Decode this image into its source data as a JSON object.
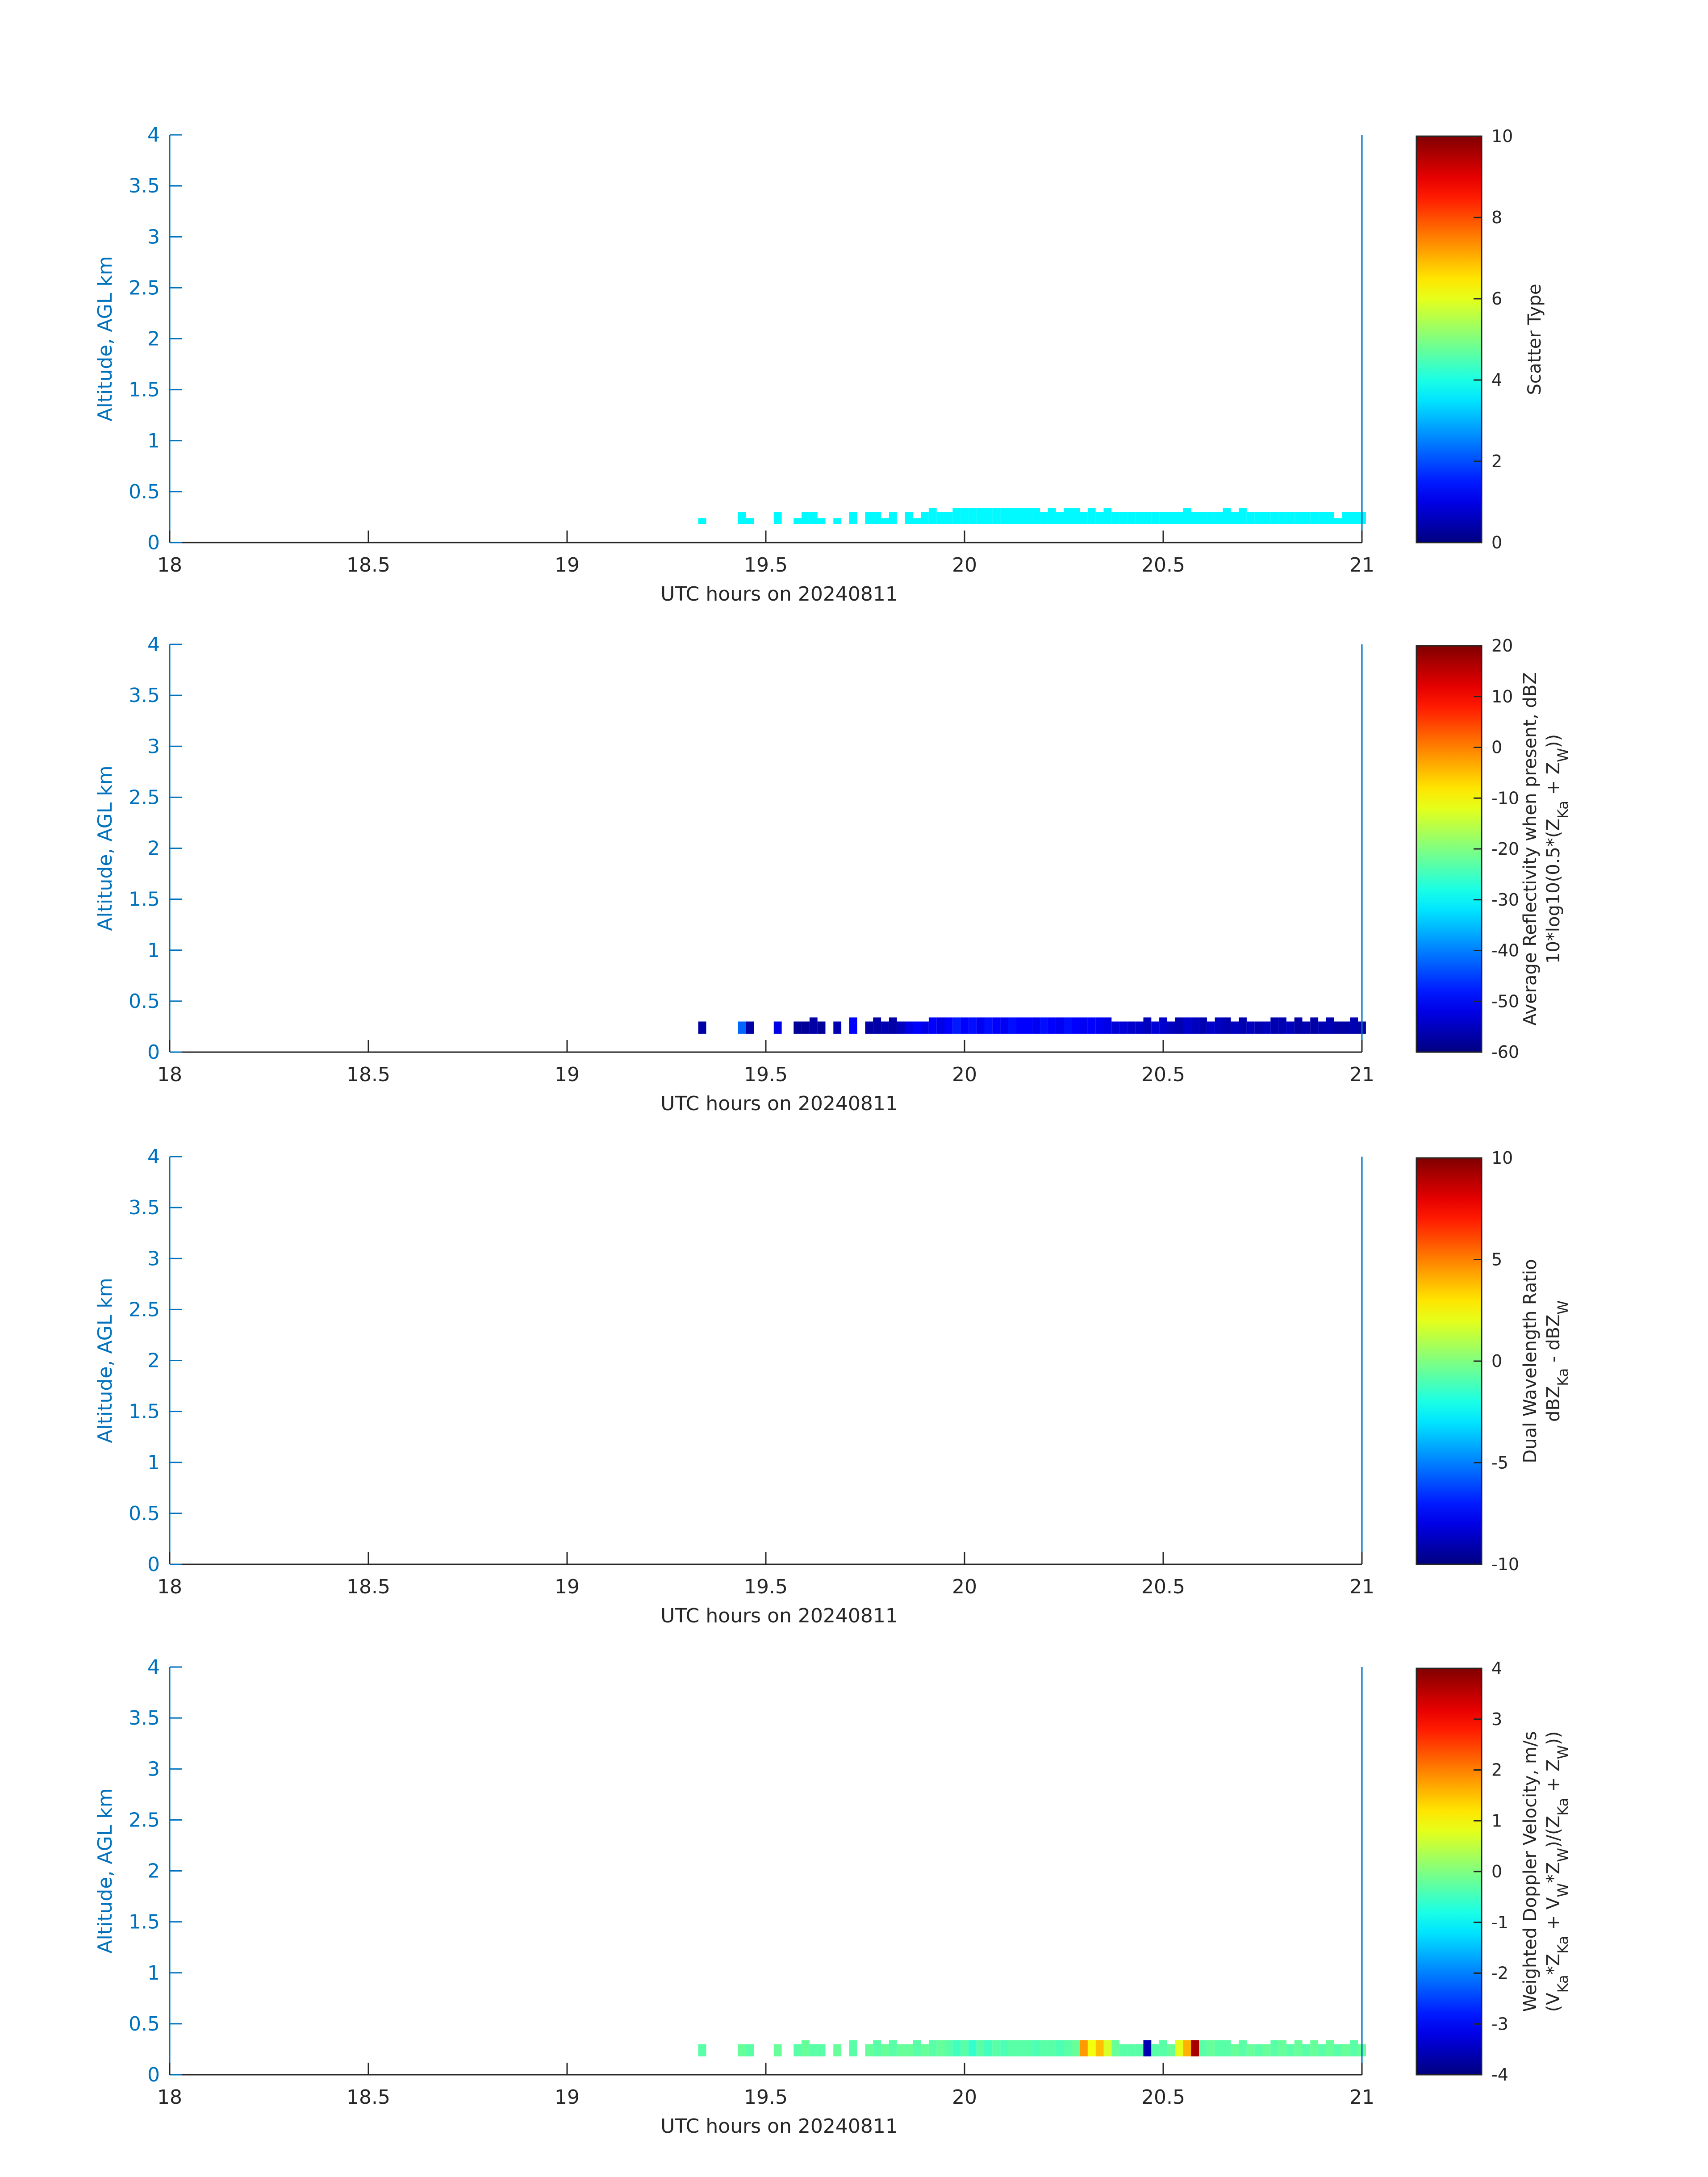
{
  "chart_data": [
    {
      "type": "heatmap",
      "xlabel": "UTC hours on 20240811",
      "ylabel": "Altitude, AGL km",
      "xlim": [
        18,
        21
      ],
      "ylim": [
        0,
        4
      ],
      "xticks": [
        "18",
        "18.5",
        "19",
        "19.5",
        "20",
        "20.5",
        "21"
      ],
      "yticks": [
        "0",
        "0.5",
        "1",
        "1.5",
        "2",
        "2.5",
        "3",
        "3.5",
        "4"
      ],
      "colorbar": {
        "label_lines": [
          "Scatter Type"
        ],
        "clim": [
          0,
          10
        ],
        "ticks": [
          "0",
          "2",
          "4",
          "6",
          "8",
          "10"
        ],
        "colormap": "jet"
      },
      "cells": {
        "x": [
          19.34,
          19.44,
          19.46,
          19.53,
          19.58,
          19.6,
          19.62,
          19.64,
          19.68,
          19.72,
          19.76,
          19.78,
          19.8,
          19.82,
          19.86,
          19.88,
          19.9,
          19.92,
          19.94,
          19.96,
          19.98,
          20.0,
          20.02,
          20.04,
          20.06,
          20.08,
          20.1,
          20.12,
          20.14,
          20.16,
          20.18,
          20.2,
          20.22,
          20.24,
          20.26,
          20.28,
          20.3,
          20.32,
          20.34,
          20.36,
          20.38,
          20.4,
          20.42,
          20.44,
          20.46,
          20.48,
          20.5,
          20.52,
          20.54,
          20.56,
          20.58,
          20.6,
          20.62,
          20.64,
          20.66,
          20.68,
          20.7,
          20.72,
          20.74,
          20.76,
          20.78,
          20.8,
          20.82,
          20.84,
          20.86,
          20.88,
          20.9,
          20.92,
          20.94,
          20.96,
          20.98,
          21.0
        ],
        "bottom": [
          0.18,
          0.18,
          0.18,
          0.18,
          0.18,
          0.18,
          0.18,
          0.18,
          0.18,
          0.18,
          0.18,
          0.18,
          0.18,
          0.18,
          0.18,
          0.18,
          0.18,
          0.18,
          0.18,
          0.18,
          0.18,
          0.18,
          0.18,
          0.18,
          0.18,
          0.18,
          0.18,
          0.18,
          0.18,
          0.18,
          0.18,
          0.18,
          0.18,
          0.18,
          0.18,
          0.18,
          0.18,
          0.18,
          0.18,
          0.18,
          0.18,
          0.18,
          0.18,
          0.18,
          0.18,
          0.18,
          0.18,
          0.18,
          0.18,
          0.18,
          0.18,
          0.18,
          0.18,
          0.18,
          0.18,
          0.18,
          0.18,
          0.18,
          0.18,
          0.18,
          0.18,
          0.18,
          0.18,
          0.18,
          0.18,
          0.18,
          0.18,
          0.18,
          0.18,
          0.18,
          0.18,
          0.18
        ],
        "top": [
          0.24,
          0.3,
          0.24,
          0.3,
          0.24,
          0.3,
          0.3,
          0.24,
          0.24,
          0.3,
          0.3,
          0.3,
          0.24,
          0.3,
          0.3,
          0.24,
          0.3,
          0.34,
          0.3,
          0.3,
          0.34,
          0.34,
          0.34,
          0.34,
          0.34,
          0.34,
          0.34,
          0.34,
          0.34,
          0.34,
          0.34,
          0.3,
          0.34,
          0.3,
          0.34,
          0.34,
          0.3,
          0.34,
          0.3,
          0.34,
          0.3,
          0.3,
          0.3,
          0.3,
          0.3,
          0.3,
          0.3,
          0.3,
          0.3,
          0.34,
          0.3,
          0.3,
          0.3,
          0.3,
          0.34,
          0.3,
          0.34,
          0.3,
          0.3,
          0.3,
          0.3,
          0.3,
          0.3,
          0.3,
          0.3,
          0.3,
          0.3,
          0.3,
          0.24,
          0.3,
          0.3,
          0.3
        ],
        "values": [
          3.7,
          3.7,
          3.7,
          3.7,
          3.7,
          3.7,
          3.7,
          3.7,
          3.7,
          3.7,
          3.7,
          3.7,
          3.7,
          3.7,
          3.7,
          3.7,
          3.7,
          3.7,
          3.7,
          3.7,
          3.7,
          3.7,
          3.7,
          3.7,
          3.7,
          3.7,
          3.7,
          3.7,
          3.7,
          3.7,
          3.7,
          3.7,
          3.7,
          3.7,
          3.7,
          3.7,
          3.7,
          3.7,
          3.7,
          3.7,
          3.7,
          3.7,
          3.7,
          3.7,
          3.7,
          3.7,
          3.7,
          3.7,
          3.7,
          3.7,
          3.7,
          3.7,
          3.7,
          3.7,
          3.7,
          3.7,
          3.7,
          3.7,
          3.7,
          3.7,
          3.7,
          3.7,
          3.7,
          3.7,
          3.7,
          3.7,
          3.7,
          3.7,
          3.7,
          3.7,
          3.7,
          3.7
        ]
      }
    },
    {
      "type": "heatmap",
      "xlabel": "UTC hours on 20240811",
      "ylabel": "Altitude, AGL km",
      "xlim": [
        18,
        21
      ],
      "ylim": [
        0,
        4
      ],
      "xticks": [
        "18",
        "18.5",
        "19",
        "19.5",
        "20",
        "20.5",
        "21"
      ],
      "yticks": [
        "0",
        "0.5",
        "1",
        "1.5",
        "2",
        "2.5",
        "3",
        "3.5",
        "4"
      ],
      "colorbar": {
        "label_lines": [
          "Average Reflectivity when present, dBZ",
          "10*log10(0.5*(Z",
          "Ka",
          " + Z",
          "W",
          "))"
        ],
        "clim": [
          -60,
          20
        ],
        "ticks": [
          "-60",
          "-50",
          "-40",
          "-30",
          "-20",
          "-10",
          "0",
          "10",
          "20"
        ],
        "colormap": "jet"
      },
      "cells": {
        "x": [
          19.34,
          19.44,
          19.46,
          19.53,
          19.58,
          19.6,
          19.62,
          19.64,
          19.68,
          19.72,
          19.76,
          19.78,
          19.8,
          19.82,
          19.84,
          19.86,
          19.88,
          19.9,
          19.92,
          19.94,
          19.96,
          19.98,
          20.0,
          20.02,
          20.04,
          20.06,
          20.08,
          20.1,
          20.12,
          20.14,
          20.16,
          20.18,
          20.2,
          20.22,
          20.24,
          20.26,
          20.28,
          20.3,
          20.32,
          20.34,
          20.36,
          20.38,
          20.4,
          20.42,
          20.44,
          20.46,
          20.48,
          20.5,
          20.52,
          20.54,
          20.56,
          20.58,
          20.6,
          20.62,
          20.64,
          20.66,
          20.68,
          20.7,
          20.72,
          20.74,
          20.76,
          20.78,
          20.8,
          20.82,
          20.84,
          20.86,
          20.88,
          20.9,
          20.92,
          20.94,
          20.96,
          20.98,
          21.0
        ],
        "bottom": [
          0.18,
          0.18,
          0.18,
          0.18,
          0.18,
          0.18,
          0.18,
          0.18,
          0.18,
          0.18,
          0.18,
          0.18,
          0.18,
          0.18,
          0.18,
          0.18,
          0.18,
          0.18,
          0.18,
          0.18,
          0.18,
          0.18,
          0.18,
          0.18,
          0.18,
          0.18,
          0.18,
          0.18,
          0.18,
          0.18,
          0.18,
          0.18,
          0.18,
          0.18,
          0.18,
          0.18,
          0.18,
          0.18,
          0.18,
          0.18,
          0.18,
          0.18,
          0.18,
          0.18,
          0.18,
          0.18,
          0.18,
          0.18,
          0.18,
          0.18,
          0.18,
          0.18,
          0.18,
          0.18,
          0.18,
          0.18,
          0.18,
          0.18,
          0.18,
          0.18,
          0.18,
          0.18,
          0.18,
          0.18,
          0.18,
          0.18,
          0.18,
          0.18,
          0.18,
          0.18,
          0.18,
          0.18,
          0.18
        ],
        "top": [
          0.3,
          0.3,
          0.3,
          0.3,
          0.3,
          0.3,
          0.34,
          0.3,
          0.3,
          0.34,
          0.3,
          0.34,
          0.3,
          0.34,
          0.3,
          0.3,
          0.3,
          0.3,
          0.34,
          0.34,
          0.34,
          0.34,
          0.34,
          0.34,
          0.34,
          0.34,
          0.34,
          0.34,
          0.34,
          0.34,
          0.34,
          0.34,
          0.34,
          0.34,
          0.34,
          0.34,
          0.34,
          0.34,
          0.34,
          0.34,
          0.34,
          0.3,
          0.3,
          0.3,
          0.3,
          0.34,
          0.3,
          0.34,
          0.3,
          0.34,
          0.34,
          0.34,
          0.34,
          0.3,
          0.34,
          0.34,
          0.3,
          0.34,
          0.3,
          0.3,
          0.3,
          0.34,
          0.34,
          0.3,
          0.34,
          0.3,
          0.34,
          0.3,
          0.34,
          0.3,
          0.3,
          0.34,
          0.3
        ],
        "values": [
          -57,
          -42,
          -57,
          -52,
          -58,
          -58,
          -57,
          -58,
          -56,
          -50,
          -57,
          -57,
          -56,
          -57,
          -55,
          -52,
          -50,
          -52,
          -50,
          -52,
          -50,
          -48,
          -50,
          -49,
          -51,
          -49,
          -50,
          -51,
          -49,
          -50,
          -50,
          -51,
          -49,
          -50,
          -51,
          -49,
          -50,
          -51,
          -50,
          -51,
          -52,
          -53,
          -53,
          -54,
          -54,
          -55,
          -53,
          -54,
          -55,
          -56,
          -54,
          -55,
          -56,
          -54,
          -55,
          -56,
          -55,
          -56,
          -55,
          -56,
          -55,
          -56,
          -56,
          -55,
          -57,
          -56,
          -57,
          -56,
          -56,
          -57,
          -57,
          -56,
          -57
        ]
      }
    },
    {
      "type": "heatmap",
      "xlabel": "UTC hours on 20240811",
      "ylabel": "Altitude, AGL km",
      "xlim": [
        18,
        21
      ],
      "ylim": [
        0,
        4
      ],
      "xticks": [
        "18",
        "18.5",
        "19",
        "19.5",
        "20",
        "20.5",
        "21"
      ],
      "yticks": [
        "0",
        "0.5",
        "1",
        "1.5",
        "2",
        "2.5",
        "3",
        "3.5",
        "4"
      ],
      "colorbar": {
        "label_lines": [
          "Dual Wavelength Ratio",
          "dBZ",
          "Ka",
          " - dBZ",
          "W"
        ],
        "clim": [
          -10,
          10
        ],
        "ticks": [
          "-10",
          "-5",
          "0",
          "5",
          "10"
        ],
        "colormap": "jet"
      },
      "cells": {
        "x": [],
        "bottom": [],
        "top": [],
        "values": []
      }
    },
    {
      "type": "heatmap",
      "xlabel": "UTC hours on 20240811",
      "ylabel": "Altitude, AGL km",
      "xlim": [
        18,
        21
      ],
      "ylim": [
        0,
        4
      ],
      "xticks": [
        "18",
        "18.5",
        "19",
        "19.5",
        "20",
        "20.5",
        "21"
      ],
      "yticks": [
        "0",
        "0.5",
        "1",
        "1.5",
        "2",
        "2.5",
        "3",
        "3.5",
        "4"
      ],
      "colorbar": {
        "label_lines": [
          "Weighted Doppler Velocity, m/s",
          "(V",
          "Ka",
          "*Z",
          "Ka",
          " + V",
          "W",
          "*Z",
          "W",
          ")/(Z",
          "Ka",
          " + Z",
          "W",
          "))"
        ],
        "clim": [
          -4,
          4
        ],
        "ticks": [
          "-4",
          "-3",
          "-2",
          "-1",
          "0",
          "1",
          "2",
          "3",
          "4"
        ],
        "colormap": "jet"
      },
      "cells": {
        "x": [
          19.34,
          19.44,
          19.46,
          19.53,
          19.58,
          19.6,
          19.62,
          19.64,
          19.68,
          19.72,
          19.76,
          19.78,
          19.8,
          19.82,
          19.84,
          19.86,
          19.88,
          19.9,
          19.92,
          19.94,
          19.96,
          19.98,
          20.0,
          20.02,
          20.04,
          20.06,
          20.08,
          20.1,
          20.12,
          20.14,
          20.16,
          20.18,
          20.2,
          20.22,
          20.24,
          20.26,
          20.28,
          20.3,
          20.32,
          20.34,
          20.36,
          20.38,
          20.4,
          20.42,
          20.44,
          20.46,
          20.48,
          20.5,
          20.52,
          20.54,
          20.56,
          20.58,
          20.6,
          20.62,
          20.64,
          20.66,
          20.68,
          20.7,
          20.72,
          20.74,
          20.76,
          20.78,
          20.8,
          20.82,
          20.84,
          20.86,
          20.88,
          20.9,
          20.92,
          20.94,
          20.96,
          20.98,
          21.0
        ],
        "bottom": [
          0.18,
          0.18,
          0.18,
          0.18,
          0.18,
          0.18,
          0.18,
          0.18,
          0.18,
          0.18,
          0.18,
          0.18,
          0.18,
          0.18,
          0.18,
          0.18,
          0.18,
          0.18,
          0.18,
          0.18,
          0.18,
          0.18,
          0.18,
          0.18,
          0.18,
          0.18,
          0.18,
          0.18,
          0.18,
          0.18,
          0.18,
          0.18,
          0.18,
          0.18,
          0.18,
          0.18,
          0.18,
          0.18,
          0.18,
          0.18,
          0.18,
          0.18,
          0.18,
          0.18,
          0.18,
          0.18,
          0.18,
          0.18,
          0.18,
          0.18,
          0.18,
          0.18,
          0.18,
          0.18,
          0.18,
          0.18,
          0.18,
          0.18,
          0.18,
          0.18,
          0.18,
          0.18,
          0.18,
          0.18,
          0.18,
          0.18,
          0.18,
          0.18,
          0.18,
          0.18,
          0.18,
          0.18,
          0.18
        ],
        "top": [
          0.3,
          0.3,
          0.3,
          0.3,
          0.3,
          0.34,
          0.3,
          0.3,
          0.3,
          0.34,
          0.3,
          0.34,
          0.3,
          0.34,
          0.3,
          0.3,
          0.34,
          0.3,
          0.34,
          0.34,
          0.34,
          0.34,
          0.34,
          0.34,
          0.34,
          0.34,
          0.34,
          0.34,
          0.34,
          0.34,
          0.34,
          0.34,
          0.34,
          0.34,
          0.34,
          0.34,
          0.34,
          0.34,
          0.34,
          0.34,
          0.34,
          0.34,
          0.3,
          0.3,
          0.3,
          0.34,
          0.3,
          0.34,
          0.3,
          0.34,
          0.34,
          0.34,
          0.34,
          0.34,
          0.34,
          0.34,
          0.3,
          0.34,
          0.3,
          0.3,
          0.3,
          0.34,
          0.34,
          0.3,
          0.34,
          0.3,
          0.34,
          0.3,
          0.34,
          0.3,
          0.3,
          0.34,
          0.3
        ],
        "values": [
          -0.3,
          -0.2,
          -0.3,
          -0.2,
          -0.3,
          -0.2,
          -0.3,
          -0.3,
          -0.2,
          -0.3,
          -0.2,
          -0.3,
          -0.2,
          -0.3,
          -0.2,
          -0.2,
          -0.3,
          -0.2,
          -0.3,
          -0.2,
          -0.3,
          -0.5,
          -0.3,
          -0.6,
          -0.3,
          -0.5,
          -0.3,
          -0.4,
          -0.3,
          -0.3,
          -0.3,
          -0.4,
          -0.3,
          -0.3,
          -0.4,
          -0.3,
          -0.2,
          1.8,
          0.9,
          1.5,
          0.7,
          -0.2,
          -0.3,
          -0.3,
          -0.3,
          -3.6,
          -0.3,
          -0.3,
          -0.2,
          0.8,
          1.6,
          3.7,
          -0.3,
          -0.2,
          -0.3,
          -0.3,
          -0.2,
          -0.3,
          -0.2,
          -0.3,
          -0.2,
          -0.3,
          -0.2,
          -0.3,
          -0.2,
          -0.3,
          -0.2,
          -0.3,
          -0.2,
          -0.3,
          -0.2,
          -0.3,
          -0.2
        ]
      }
    }
  ]
}
